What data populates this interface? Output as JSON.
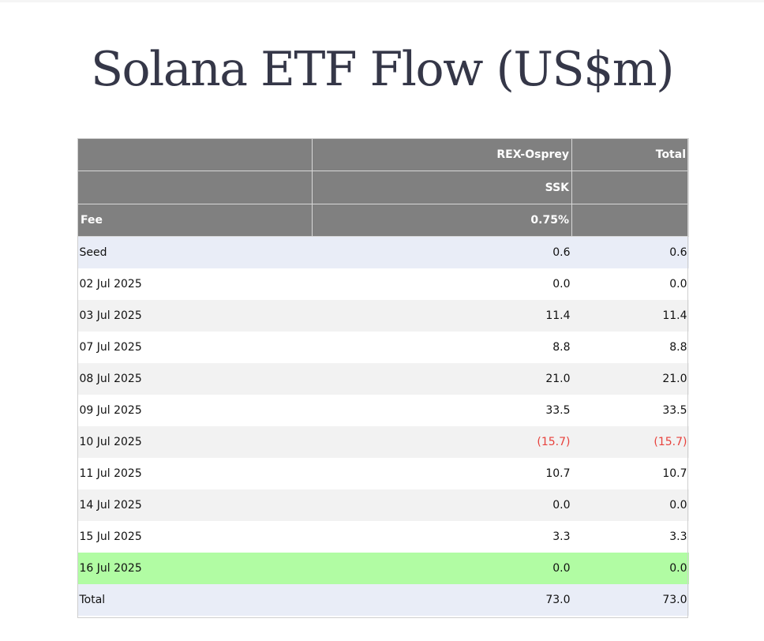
{
  "title": "Solana ETF Flow (US$m)",
  "header": {
    "row1": [
      "",
      "REX-Osprey",
      "Total"
    ],
    "row2": [
      "",
      "SSK",
      ""
    ],
    "row3": [
      "Fee",
      "0.75%",
      ""
    ]
  },
  "rows": [
    {
      "date": "Seed",
      "ssk": "0.6",
      "total": "0.6",
      "style": "blue",
      "negative": false
    },
    {
      "date": "02 Jul 2025",
      "ssk": "0.0",
      "total": "0.0",
      "style": "odd",
      "negative": false
    },
    {
      "date": "03 Jul 2025",
      "ssk": "11.4",
      "total": "11.4",
      "style": "even",
      "negative": false
    },
    {
      "date": "07 Jul 2025",
      "ssk": "8.8",
      "total": "8.8",
      "style": "odd",
      "negative": false
    },
    {
      "date": "08 Jul 2025",
      "ssk": "21.0",
      "total": "21.0",
      "style": "even",
      "negative": false
    },
    {
      "date": "09 Jul 2025",
      "ssk": "33.5",
      "total": "33.5",
      "style": "odd",
      "negative": false
    },
    {
      "date": "10 Jul 2025",
      "ssk": "(15.7)",
      "total": "(15.7)",
      "style": "even",
      "negative": true
    },
    {
      "date": "11 Jul 2025",
      "ssk": "10.7",
      "total": "10.7",
      "style": "odd",
      "negative": false
    },
    {
      "date": "14 Jul 2025",
      "ssk": "0.0",
      "total": "0.0",
      "style": "even",
      "negative": false
    },
    {
      "date": "15 Jul 2025",
      "ssk": "3.3",
      "total": "3.3",
      "style": "odd",
      "negative": false
    },
    {
      "date": "16 Jul 2025",
      "ssk": "0.0",
      "total": "0.0",
      "style": "green",
      "negative": false
    },
    {
      "date": "Total",
      "ssk": "73.0",
      "total": "73.0",
      "style": "blue",
      "negative": false
    }
  ],
  "colors": {
    "header_bg": "#808080",
    "header_text": "#ffffff",
    "title_text": "#353748",
    "row_blue": "#e9edf7",
    "row_even": "#f2f2f2",
    "row_green": "#b1fca3",
    "negative_text": "#e8413c"
  }
}
